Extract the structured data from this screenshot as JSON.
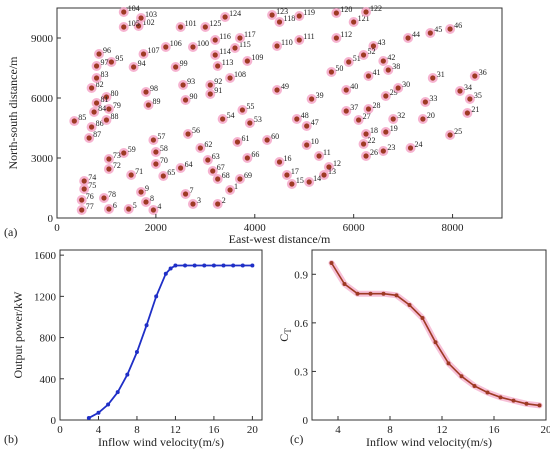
{
  "chart_data": [
    {
      "type": "scatter",
      "panel": "(a)",
      "xlabel": "East-west distance/m",
      "ylabel": "North-south distance/m",
      "xlim": [
        0,
        9000
      ],
      "ylim": [
        0,
        10500
      ],
      "xticks": [
        0,
        2000,
        4000,
        6000,
        8000
      ],
      "yticks": [
        0,
        3000,
        6000,
        9000
      ],
      "grid": false,
      "colors": {
        "point": "#9e3a24",
        "halo": "#f4a6c8"
      },
      "points": [
        {
          "id": "1",
          "x": 3500,
          "y": 1400
        },
        {
          "id": "2",
          "x": 3250,
          "y": 700
        },
        {
          "id": "3",
          "x": 2750,
          "y": 700
        },
        {
          "id": "4",
          "x": 1950,
          "y": 400
        },
        {
          "id": "5",
          "x": 1450,
          "y": 450
        },
        {
          "id": "6",
          "x": 1050,
          "y": 450
        },
        {
          "id": "7",
          "x": 2600,
          "y": 1200
        },
        {
          "id": "8",
          "x": 1800,
          "y": 800
        },
        {
          "id": "9",
          "x": 1700,
          "y": 1300
        },
        {
          "id": "10",
          "x": 5050,
          "y": 3650
        },
        {
          "id": "11",
          "x": 5300,
          "y": 3100
        },
        {
          "id": "12",
          "x": 5500,
          "y": 2550
        },
        {
          "id": "13",
          "x": 5400,
          "y": 2150
        },
        {
          "id": "14",
          "x": 5100,
          "y": 1800
        },
        {
          "id": "15",
          "x": 4750,
          "y": 1700
        },
        {
          "id": "16",
          "x": 4500,
          "y": 2800
        },
        {
          "id": "17",
          "x": 4650,
          "y": 2150
        },
        {
          "id": "18",
          "x": 6250,
          "y": 4200
        },
        {
          "id": "19",
          "x": 6650,
          "y": 4300
        },
        {
          "id": "20",
          "x": 7400,
          "y": 4950
        },
        {
          "id": "21",
          "x": 8300,
          "y": 5250
        },
        {
          "id": "22",
          "x": 6200,
          "y": 3700
        },
        {
          "id": "23",
          "x": 6600,
          "y": 3350
        },
        {
          "id": "24",
          "x": 7150,
          "y": 3500
        },
        {
          "id": "25",
          "x": 7950,
          "y": 4150
        },
        {
          "id": "26",
          "x": 6250,
          "y": 3100
        },
        {
          "id": "27",
          "x": 6100,
          "y": 4900
        },
        {
          "id": "28",
          "x": 6300,
          "y": 5450
        },
        {
          "id": "29",
          "x": 6650,
          "y": 6100
        },
        {
          "id": "30",
          "x": 6900,
          "y": 6500
        },
        {
          "id": "31",
          "x": 7600,
          "y": 7000
        },
        {
          "id": "32",
          "x": 6800,
          "y": 4950
        },
        {
          "id": "33",
          "x": 7450,
          "y": 5800
        },
        {
          "id": "34",
          "x": 8150,
          "y": 6350
        },
        {
          "id": "35",
          "x": 8350,
          "y": 5950
        },
        {
          "id": "36",
          "x": 8450,
          "y": 7100
        },
        {
          "id": "37",
          "x": 5850,
          "y": 5350
        },
        {
          "id": "38",
          "x": 6700,
          "y": 7400
        },
        {
          "id": "39",
          "x": 5150,
          "y": 5950
        },
        {
          "id": "40",
          "x": 5850,
          "y": 6400
        },
        {
          "id": "41",
          "x": 6300,
          "y": 7100
        },
        {
          "id": "42",
          "x": 6600,
          "y": 7850
        },
        {
          "id": "43",
          "x": 6400,
          "y": 8600
        },
        {
          "id": "44",
          "x": 7100,
          "y": 9000
        },
        {
          "id": "45",
          "x": 7550,
          "y": 9250
        },
        {
          "id": "46",
          "x": 7950,
          "y": 9450
        },
        {
          "id": "47",
          "x": 5050,
          "y": 4600
        },
        {
          "id": "48",
          "x": 4850,
          "y": 4950
        },
        {
          "id": "49",
          "x": 4450,
          "y": 6400
        },
        {
          "id": "50",
          "x": 5550,
          "y": 7300
        },
        {
          "id": "51",
          "x": 5900,
          "y": 7800
        },
        {
          "id": "52",
          "x": 6200,
          "y": 8150
        },
        {
          "id": "53",
          "x": 3900,
          "y": 4750
        },
        {
          "id": "54",
          "x": 3350,
          "y": 4950
        },
        {
          "id": "55",
          "x": 3750,
          "y": 5400
        },
        {
          "id": "56",
          "x": 2650,
          "y": 4200
        },
        {
          "id": "57",
          "x": 1950,
          "y": 3900
        },
        {
          "id": "58",
          "x": 2000,
          "y": 3300
        },
        {
          "id": "59",
          "x": 1350,
          "y": 3250
        },
        {
          "id": "60",
          "x": 4250,
          "y": 3900
        },
        {
          "id": "61",
          "x": 3650,
          "y": 3800
        },
        {
          "id": "62",
          "x": 2900,
          "y": 3500
        },
        {
          "id": "63",
          "x": 3050,
          "y": 2900
        },
        {
          "id": "64",
          "x": 2500,
          "y": 2500
        },
        {
          "id": "65",
          "x": 2150,
          "y": 2100
        },
        {
          "id": "66",
          "x": 3850,
          "y": 3000
        },
        {
          "id": "67",
          "x": 3150,
          "y": 2350
        },
        {
          "id": "68",
          "x": 3250,
          "y": 1950
        },
        {
          "id": "69",
          "x": 3700,
          "y": 1950
        },
        {
          "id": "70",
          "x": 2000,
          "y": 2700
        },
        {
          "id": "71",
          "x": 1500,
          "y": 2150
        },
        {
          "id": "72",
          "x": 1050,
          "y": 2450
        },
        {
          "id": "73",
          "x": 1050,
          "y": 2950
        },
        {
          "id": "74",
          "x": 550,
          "y": 1850
        },
        {
          "id": "75",
          "x": 550,
          "y": 1450
        },
        {
          "id": "76",
          "x": 500,
          "y": 900
        },
        {
          "id": "77",
          "x": 500,
          "y": 400
        },
        {
          "id": "78",
          "x": 950,
          "y": 1000
        },
        {
          "id": "79",
          "x": 1050,
          "y": 5450
        },
        {
          "id": "80",
          "x": 1000,
          "y": 6050
        },
        {
          "id": "81",
          "x": 800,
          "y": 5750
        },
        {
          "id": "82",
          "x": 700,
          "y": 6500
        },
        {
          "id": "83",
          "x": 800,
          "y": 7000
        },
        {
          "id": "84",
          "x": 750,
          "y": 5300
        },
        {
          "id": "85",
          "x": 350,
          "y": 4850
        },
        {
          "id": "86",
          "x": 700,
          "y": 4550
        },
        {
          "id": "87",
          "x": 650,
          "y": 4000
        },
        {
          "id": "88",
          "x": 1000,
          "y": 4900
        },
        {
          "id": "89",
          "x": 1850,
          "y": 5650
        },
        {
          "id": "90",
          "x": 2600,
          "y": 5900
        },
        {
          "id": "91",
          "x": 3100,
          "y": 6200
        },
        {
          "id": "92",
          "x": 3100,
          "y": 6650
        },
        {
          "id": "93",
          "x": 2550,
          "y": 6650
        },
        {
          "id": "94",
          "x": 1550,
          "y": 7550
        },
        {
          "id": "95",
          "x": 1100,
          "y": 7800
        },
        {
          "id": "96",
          "x": 850,
          "y": 8200
        },
        {
          "id": "97",
          "x": 800,
          "y": 7600
        },
        {
          "id": "98",
          "x": 1800,
          "y": 6300
        },
        {
          "id": "99",
          "x": 2400,
          "y": 7550
        },
        {
          "id": "100",
          "x": 2750,
          "y": 8550
        },
        {
          "id": "101",
          "x": 2500,
          "y": 9550
        },
        {
          "id": "102",
          "x": 1650,
          "y": 9600
        },
        {
          "id": "103",
          "x": 1700,
          "y": 10000
        },
        {
          "id": "104",
          "x": 1350,
          "y": 10300
        },
        {
          "id": "105",
          "x": 1350,
          "y": 9550
        },
        {
          "id": "106",
          "x": 2200,
          "y": 8550
        },
        {
          "id": "107",
          "x": 1750,
          "y": 8200
        },
        {
          "id": "108",
          "x": 3500,
          "y": 7000
        },
        {
          "id": "109",
          "x": 3850,
          "y": 7850
        },
        {
          "id": "110",
          "x": 4450,
          "y": 8600
        },
        {
          "id": "111",
          "x": 4900,
          "y": 8900
        },
        {
          "id": "112",
          "x": 5650,
          "y": 9000
        },
        {
          "id": "113",
          "x": 3250,
          "y": 7600
        },
        {
          "id": "114",
          "x": 3200,
          "y": 8150
        },
        {
          "id": "115",
          "x": 3600,
          "y": 8500
        },
        {
          "id": "116",
          "x": 3200,
          "y": 8900
        },
        {
          "id": "117",
          "x": 3700,
          "y": 9000
        },
        {
          "id": "118",
          "x": 4500,
          "y": 9800
        },
        {
          "id": "119",
          "x": 4900,
          "y": 10100
        },
        {
          "id": "120",
          "x": 5650,
          "y": 10250
        },
        {
          "id": "121",
          "x": 6000,
          "y": 9800
        },
        {
          "id": "122",
          "x": 6250,
          "y": 10300
        },
        {
          "id": "123",
          "x": 4350,
          "y": 10150
        },
        {
          "id": "124",
          "x": 3400,
          "y": 10050
        },
        {
          "id": "125",
          "x": 3000,
          "y": 9550
        }
      ]
    },
    {
      "type": "line",
      "panel": "(b)",
      "xlabel": "Inflow wind velocity(m/s)",
      "ylabel": "Output power/kW",
      "xlim": [
        0,
        21
      ],
      "ylim": [
        0,
        1650
      ],
      "xticks": [
        0,
        4,
        8,
        12,
        16,
        20
      ],
      "yticks": [
        0,
        400,
        800,
        1200,
        1600
      ],
      "grid": false,
      "colors": {
        "line": "#1f2fc7"
      },
      "x": [
        3,
        4,
        5,
        6,
        7,
        8,
        9,
        10,
        11,
        11.5,
        12,
        13,
        14,
        15,
        16,
        17,
        18,
        19,
        20
      ],
      "y": [
        20,
        70,
        150,
        270,
        440,
        660,
        920,
        1200,
        1420,
        1470,
        1500,
        1500,
        1500,
        1500,
        1500,
        1500,
        1500,
        1500,
        1500
      ]
    },
    {
      "type": "line",
      "panel": "(c)",
      "xlabel": "Inflow wind velocity(m/s)",
      "ylabel": "C",
      "ylabel_sub": "T",
      "xlim": [
        2,
        20
      ],
      "ylim": [
        0,
        1.05
      ],
      "xticks": [
        4,
        8,
        12,
        16,
        20
      ],
      "yticks": [
        0,
        0.3,
        0.6,
        0.9
      ],
      "yticklabels": [
        "0",
        "0.3",
        "0.6",
        "0.9"
      ],
      "grid": false,
      "colors": {
        "line": "#9e3a24",
        "halo": "#f4a6c8"
      },
      "x": [
        3.5,
        4.5,
        5.5,
        6.5,
        7.5,
        8.5,
        9.5,
        10.5,
        11.5,
        12.5,
        13.5,
        14.5,
        15.5,
        16.5,
        17.5,
        18.5,
        19.5
      ],
      "y": [
        0.97,
        0.84,
        0.78,
        0.78,
        0.78,
        0.77,
        0.71,
        0.63,
        0.48,
        0.35,
        0.27,
        0.21,
        0.17,
        0.14,
        0.12,
        0.1,
        0.09
      ]
    }
  ]
}
